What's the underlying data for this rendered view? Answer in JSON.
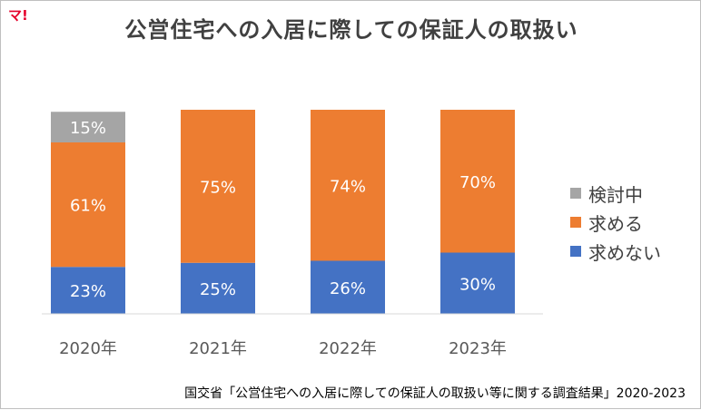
{
  "logo": {
    "text": "マ!"
  },
  "title": "公営住宅への入居に際しての保証人の取扱い",
  "source_text": "国交省「公営住宅への入居に際しての保証人の取扱い等に関する調査結果」2020-2023",
  "chart_data": {
    "type": "bar",
    "stacked": true,
    "categories": [
      "2020年",
      "2021年",
      "2022年",
      "2023年"
    ],
    "series": [
      {
        "name": "求めない",
        "values": [
          23,
          25,
          26,
          30
        ],
        "labels": [
          "23%",
          "25%",
          "26%",
          "30%"
        ],
        "color": "#4472C4"
      },
      {
        "name": "求める",
        "values": [
          61,
          75,
          74,
          70
        ],
        "labels": [
          "61%",
          "75%",
          "74%",
          "70%"
        ],
        "color": "#ED7D31"
      },
      {
        "name": "検討中",
        "values": [
          15,
          0,
          0,
          0
        ],
        "labels": [
          "15%",
          "",
          "",
          ""
        ],
        "color": "#A5A5A5"
      }
    ],
    "legend_order": [
      "検討中",
      "求める",
      "求めない"
    ],
    "legend_position": "right",
    "ylim": [
      0,
      100
    ],
    "grid": false
  }
}
